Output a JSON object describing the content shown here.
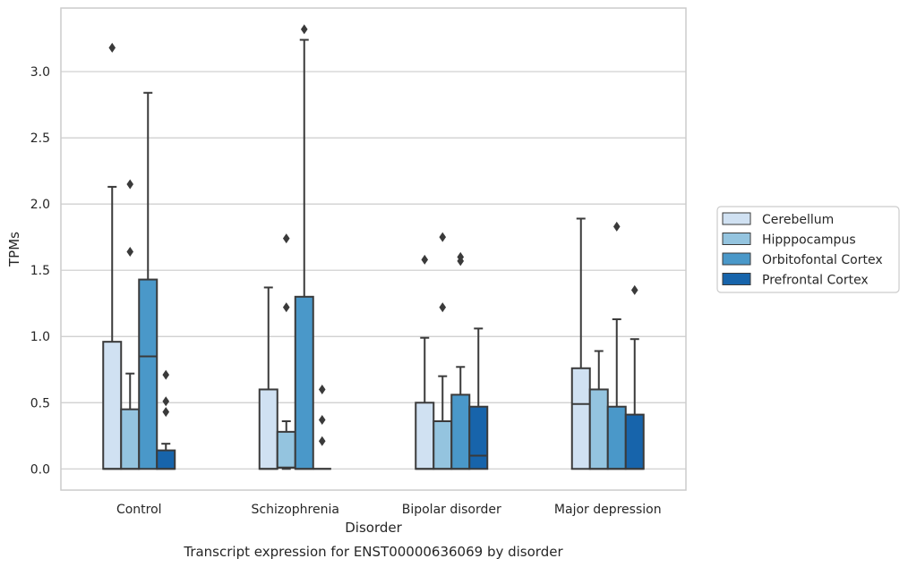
{
  "chart_data": {
    "type": "boxplot",
    "caption": "Transcript expression for ENST00000636069 by disorder",
    "xlabel": "Disorder",
    "ylabel": "TPMs",
    "ylim": [
      -0.16,
      3.48
    ],
    "yticks": [
      "0.0",
      "0.5",
      "1.0",
      "1.5",
      "2.0",
      "2.5",
      "3.0"
    ],
    "grid": "horizontal",
    "legend_position": "right",
    "categories": [
      "Control",
      "Schizophrenia",
      "Bipolar disorder",
      "Major depression"
    ],
    "series": [
      {
        "name": "Cerebellum",
        "color": "#d0e1f2",
        "boxes": [
          {
            "min": 0.0,
            "q1": 0.0,
            "median": 0.0,
            "q3": 0.96,
            "max": 2.13,
            "outliers": [
              3.18
            ]
          },
          {
            "min": 0.0,
            "q1": 0.0,
            "median": 0.0,
            "q3": 0.6,
            "max": 1.37,
            "outliers": []
          },
          {
            "min": 0.0,
            "q1": 0.0,
            "median": 0.0,
            "q3": 0.5,
            "max": 0.99,
            "outliers": [
              1.58
            ]
          },
          {
            "min": 0.0,
            "q1": 0.0,
            "median": 0.49,
            "q3": 0.76,
            "max": 1.89,
            "outliers": []
          }
        ]
      },
      {
        "name": "Hipppocampus",
        "color": "#94c4df",
        "boxes": [
          {
            "min": 0.0,
            "q1": 0.0,
            "median": 0.0,
            "q3": 0.45,
            "max": 0.72,
            "outliers": [
              1.64,
              2.15
            ]
          },
          {
            "min": 0.0,
            "q1": 0.01,
            "median": 0.01,
            "q3": 0.28,
            "max": 0.36,
            "outliers": [
              1.22,
              1.74
            ]
          },
          {
            "min": 0.0,
            "q1": 0.0,
            "median": 0.0,
            "q3": 0.36,
            "max": 0.7,
            "outliers": [
              1.22,
              1.75
            ]
          },
          {
            "min": 0.0,
            "q1": 0.0,
            "median": 0.0,
            "q3": 0.6,
            "max": 0.89,
            "outliers": []
          }
        ]
      },
      {
        "name": "Orbitofontal Cortex",
        "color": "#4a98c9",
        "boxes": [
          {
            "min": 0.0,
            "q1": 0.0,
            "median": 0.85,
            "q3": 1.43,
            "max": 2.84,
            "outliers": []
          },
          {
            "min": 0.0,
            "q1": 0.0,
            "median": 0.0,
            "q3": 1.3,
            "max": 3.24,
            "outliers": [
              3.32
            ]
          },
          {
            "min": 0.0,
            "q1": 0.0,
            "median": 0.0,
            "q3": 0.56,
            "max": 0.77,
            "outliers": [
              1.57,
              1.6
            ]
          },
          {
            "min": 0.0,
            "q1": 0.0,
            "median": 0.0,
            "q3": 0.47,
            "max": 1.13,
            "outliers": [
              1.83
            ]
          }
        ]
      },
      {
        "name": "Prefrontal Cortex",
        "color": "#1764ab",
        "boxes": [
          {
            "min": 0.0,
            "q1": 0.0,
            "median": 0.0,
            "q3": 0.14,
            "max": 0.19,
            "outliers": [
              0.43,
              0.51,
              0.71
            ]
          },
          {
            "min": 0.0,
            "q1": 0.0,
            "median": 0.0,
            "q3": 0.0,
            "max": 0.0,
            "outliers": [
              0.21,
              0.37,
              0.6
            ]
          },
          {
            "min": 0.0,
            "q1": 0.0,
            "median": 0.1,
            "q3": 0.47,
            "max": 1.06,
            "outliers": []
          },
          {
            "min": 0.0,
            "q1": 0.0,
            "median": 0.0,
            "q3": 0.41,
            "max": 0.98,
            "outliers": [
              1.35
            ]
          }
        ]
      }
    ]
  }
}
